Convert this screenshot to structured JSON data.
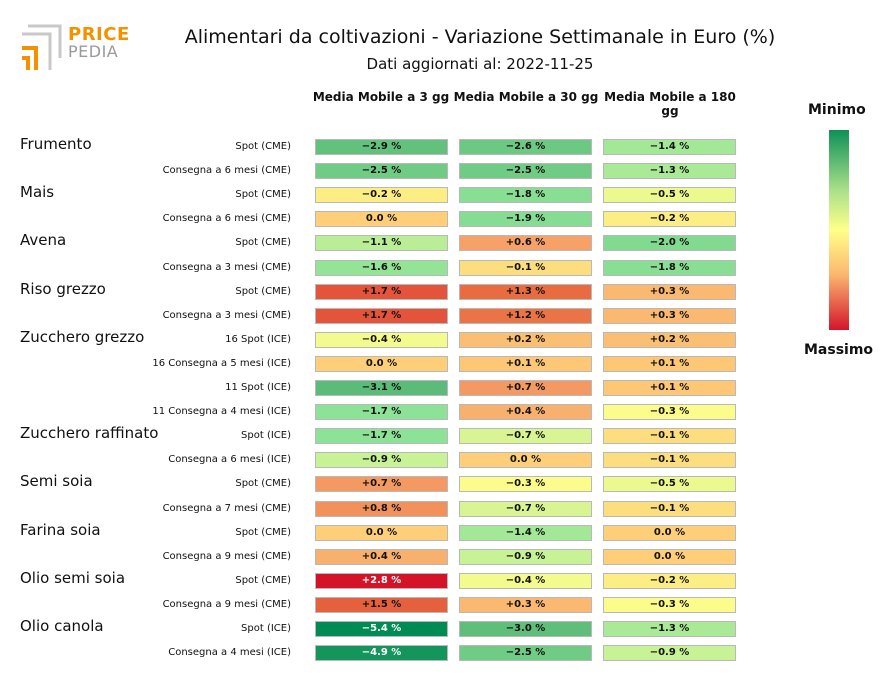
{
  "logo": {
    "line1": "PRICE",
    "line2": "PEDIA"
  },
  "chart_data": {
    "type": "table",
    "title": "Alimentari da coltivazioni - Variazione Settimanale in Euro (%)",
    "subtitle": "Dati aggiornati al: 2022-11-25",
    "columns": [
      "Media Mobile a 3 gg",
      "Media Mobile a 30 gg",
      "Media Mobile a 180 gg"
    ],
    "legend": {
      "top": "Minimo",
      "bottom": "Massimo"
    },
    "groups": [
      {
        "name": "Frumento",
        "rows": [
          {
            "label": "Spot (CME)",
            "values": [
              -2.9,
              -2.6,
              -1.4
            ]
          },
          {
            "label": "Consegna a 6 mesi (CME)",
            "values": [
              -2.5,
              -2.5,
              -1.3
            ]
          }
        ]
      },
      {
        "name": "Mais",
        "rows": [
          {
            "label": "Spot (CME)",
            "values": [
              -0.2,
              -1.8,
              -0.5
            ]
          },
          {
            "label": "Consegna a 6 mesi (CME)",
            "values": [
              0.0,
              -1.9,
              -0.2
            ]
          }
        ]
      },
      {
        "name": "Avena",
        "rows": [
          {
            "label": "Spot (CME)",
            "values": [
              -1.1,
              0.6,
              -2.0
            ]
          },
          {
            "label": "Consegna a 3 mesi (CME)",
            "values": [
              -1.6,
              -0.1,
              -1.8
            ]
          }
        ]
      },
      {
        "name": "Riso grezzo",
        "rows": [
          {
            "label": "Spot (CME)",
            "values": [
              1.7,
              1.3,
              0.3
            ]
          },
          {
            "label": "Consegna a 3 mesi (CME)",
            "values": [
              1.7,
              1.2,
              0.3
            ]
          }
        ]
      },
      {
        "name": "Zucchero grezzo",
        "rows": [
          {
            "label": "16 Spot (ICE)",
            "values": [
              -0.4,
              0.2,
              0.2
            ]
          },
          {
            "label": "16 Consegna a 5 mesi (ICE)",
            "values": [
              0.0,
              0.1,
              0.1
            ]
          },
          {
            "label": "11 Spot (ICE)",
            "values": [
              -3.1,
              0.7,
              0.1
            ]
          },
          {
            "label": "11 Consegna a 4 mesi (ICE)",
            "values": [
              -1.7,
              0.4,
              -0.3
            ]
          }
        ]
      },
      {
        "name": "Zucchero raffinato",
        "rows": [
          {
            "label": "Spot (ICE)",
            "values": [
              -1.7,
              -0.7,
              -0.1
            ]
          },
          {
            "label": "Consegna a 6 mesi (ICE)",
            "values": [
              -0.9,
              0.0,
              -0.1
            ]
          }
        ]
      },
      {
        "name": "Semi soia",
        "rows": [
          {
            "label": "Spot (CME)",
            "values": [
              0.7,
              -0.3,
              -0.5
            ]
          },
          {
            "label": "Consegna a 7 mesi (CME)",
            "values": [
              0.8,
              -0.7,
              -0.1
            ]
          }
        ]
      },
      {
        "name": "Farina soia",
        "rows": [
          {
            "label": "Spot (CME)",
            "values": [
              0.0,
              -1.4,
              0.0
            ]
          },
          {
            "label": "Consegna a 9 mesi (CME)",
            "values": [
              0.4,
              -0.9,
              0.0
            ]
          }
        ]
      },
      {
        "name": "Olio semi soia",
        "rows": [
          {
            "label": "Spot (CME)",
            "values": [
              2.8,
              -0.4,
              -0.2
            ]
          },
          {
            "label": "Consegna a 9 mesi (CME)",
            "values": [
              1.5,
              0.3,
              -0.3
            ]
          }
        ]
      },
      {
        "name": "Olio canola",
        "rows": [
          {
            "label": "Spot (ICE)",
            "values": [
              -5.4,
              -3.0,
              -1.3
            ]
          },
          {
            "label": "Consegna a 4 mesi (ICE)",
            "values": [
              -4.9,
              -2.5,
              -0.9
            ]
          }
        ]
      }
    ]
  }
}
